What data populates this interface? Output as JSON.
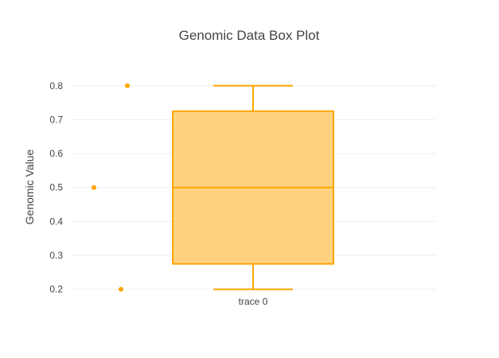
{
  "chart_data": {
    "type": "box",
    "title": "Genomic Data Box Plot",
    "xlabel": "",
    "ylabel": "Genomic Value",
    "ylim": [
      0.185,
      0.83
    ],
    "yticks": [
      "0.2",
      "0.3",
      "0.4",
      "0.5",
      "0.6",
      "0.7",
      "0.8"
    ],
    "grid": true,
    "legend": "none",
    "series": [
      {
        "name": "trace 0",
        "min": 0.2,
        "q1": 0.275,
        "median": 0.5,
        "q3": 0.725,
        "max": 0.8,
        "points": [
          0.8,
          0.5,
          0.2
        ]
      }
    ],
    "colors": {
      "box_line": "#FFA500",
      "box_fill": "#FFD280",
      "point": "#FFA500"
    }
  }
}
